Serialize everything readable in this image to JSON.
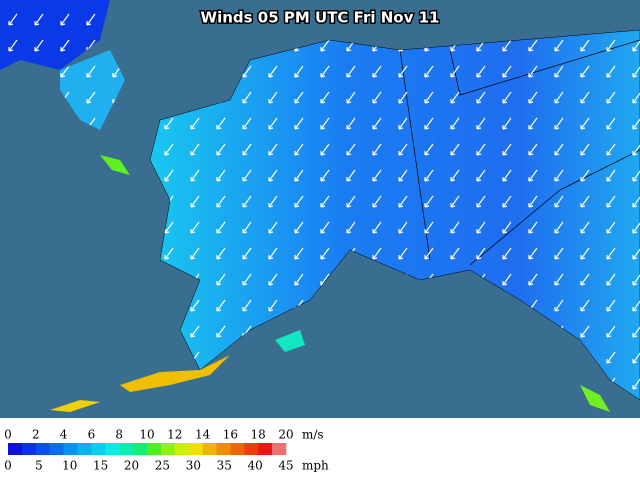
{
  "title": "Winds 05 PM UTC Fri Nov 11",
  "legend": {
    "ms_ticks": [
      0,
      2,
      4,
      6,
      8,
      10,
      12,
      14,
      16,
      18,
      20
    ],
    "ms_unit": "m/s",
    "mph_ticks": [
      0,
      5,
      10,
      15,
      20,
      25,
      30,
      35,
      40,
      45
    ],
    "mph_unit": "mph",
    "colors": [
      "#1010e0",
      "#0a30f0",
      "#0850f5",
      "#0570f5",
      "#0590f5",
      "#05b0f5",
      "#05d0f0",
      "#05ece0",
      "#05f0b0",
      "#10f070",
      "#50f020",
      "#90f010",
      "#c8f000",
      "#f0e000",
      "#f0b400",
      "#f08c00",
      "#f06400",
      "#f03c00",
      "#f01414",
      "#f07070"
    ]
  }
}
